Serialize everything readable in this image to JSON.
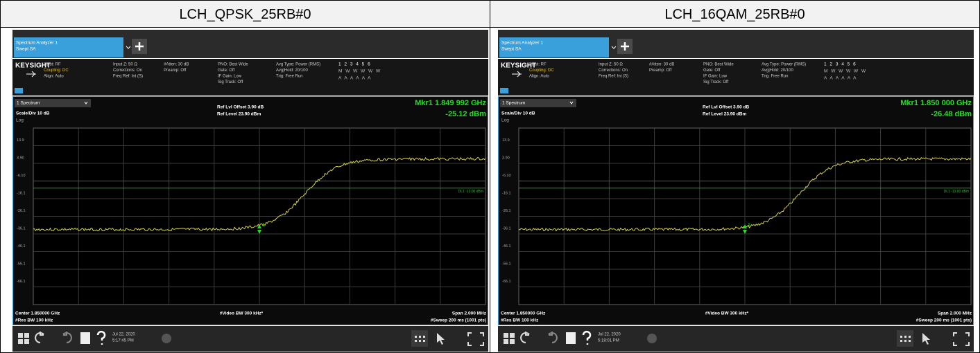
{
  "header": {
    "columns": [
      "LCH_QPSK_25RB#0",
      "LCH_16QAM_25RB#0"
    ]
  },
  "panels": [
    {
      "tab_title": "Spectrum Analyzer 1",
      "tab_subtitle": "Swept SA",
      "brand": "KEYSIGHT",
      "status": [
        [
          "Input: RF",
          "Coupling: DC",
          "Align: Auto"
        ],
        [
          "Input Z: 50 Ω",
          "Corrections: On",
          "Freq Ref: Int (S)"
        ],
        [
          "#Atten: 30 dB",
          "Preamp: Off"
        ],
        [
          "PNO: Best Wide",
          "Gate: Off",
          "IF Gain: Low",
          "Sig Track: Off"
        ],
        [
          "Avg Type: Power (RMS)",
          "Avg|Hold: 20/100",
          "Trig: Free Run"
        ]
      ],
      "traces": [
        "1 2 3 4 5 6",
        "M W W W W W",
        "A A A A A A"
      ],
      "window": "1 Spectrum",
      "scale": "Scale/Div 10 dB",
      "log": "Log",
      "ref_offset": "Ref Lvl Offset 3.90 dB",
      "ref_level": "Ref Level 23.90 dBm",
      "marker_freq": "Mkr1 1.849 992 GHz",
      "marker_amp": "-25.12 dBm",
      "marker_label": "1",
      "y_labels": [
        "13.9",
        "3.90",
        "-6.10",
        "-16.1",
        "-26.1",
        "-36.1",
        "-46.1",
        "-56.1",
        "-66.1"
      ],
      "limit_label": "DL1 -13.00 dBm",
      "center": "Center 1.850000 GHz",
      "res_bw": "#Res BW 100 kHz",
      "video_bw": "#Video BW 300 kHz*",
      "span": "Span 2.000 MHz",
      "sweep": "#Sweep 200 ms (1001 pts)",
      "date": "Jul 22, 2020",
      "time": "5:17:45 PM"
    },
    {
      "tab_title": "Spectrum Analyzer 1",
      "tab_subtitle": "Swept SA",
      "brand": "KEYSIGHT",
      "status": [
        [
          "Input: RF",
          "Coupling: DC",
          "Align: Auto"
        ],
        [
          "Input Z: 50 Ω",
          "Corrections: On",
          "Freq Ref: Int (S)"
        ],
        [
          "#Atten: 30 dB",
          "Preamp: Off"
        ],
        [
          "PNO: Best Wide",
          "Gate: Off",
          "IF Gain: Low",
          "Sig Track: Off"
        ],
        [
          "Avg Type: Power (RMS)",
          "Avg|Hold: 20/100",
          "Trig: Free Run"
        ]
      ],
      "traces": [
        "1 2 3 4 5 6",
        "M W W W W W",
        "A A A A A A"
      ],
      "window": "1 Spectrum",
      "scale": "Scale/Div 10 dB",
      "log": "Log",
      "ref_offset": "Ref Lvl Offset 3.90 dB",
      "ref_level": "Ref Level 23.90 dBm",
      "marker_freq": "Mkr1 1.850 000 GHz",
      "marker_amp": "-26.48 dBm",
      "marker_label": "1",
      "y_labels": [
        "13.9",
        "3.90",
        "-6.10",
        "-16.1",
        "-26.1",
        "-36.1",
        "-46.1",
        "-56.1",
        "-66.1"
      ],
      "limit_label": "DL1 -13.00 dBm",
      "center": "Center 1.850000 GHz",
      "res_bw": "#Res BW 100 kHz",
      "video_bw": "#Video BW 300 kHz*",
      "span": "Span 2.000 MHz",
      "sweep": "#Sweep 200 ms (1001 pts)",
      "date": "Jul 22, 2020",
      "time": "5:18:01 PM"
    }
  ]
}
